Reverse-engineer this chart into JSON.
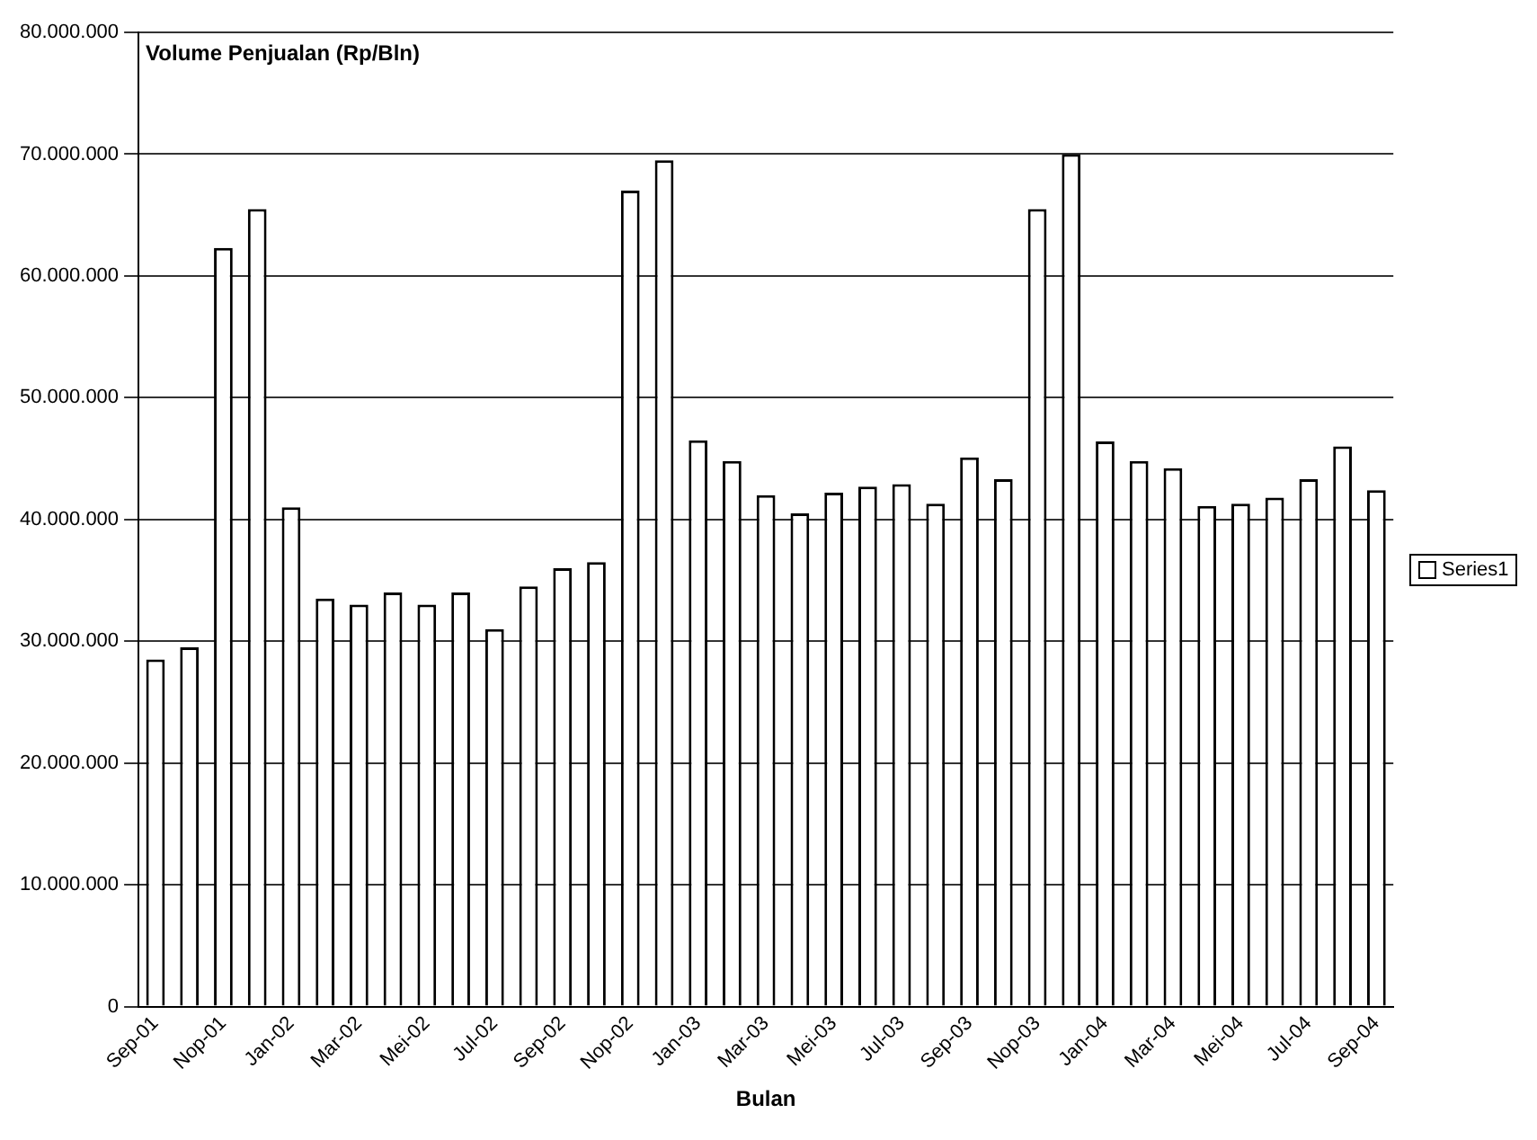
{
  "chart_data": {
    "type": "bar",
    "ylabel": "Volume Penjualan (Rp/Bln)",
    "xlabel": "Bulan",
    "categories": [
      "Sep-01",
      null,
      "Nop-01",
      null,
      "Jan-02",
      null,
      "Mar-02",
      null,
      "Mei-02",
      null,
      "Jul-02",
      null,
      "Sep-02",
      null,
      "Nop-02",
      null,
      "Jan-03",
      null,
      "Mar-03",
      null,
      "Mei-03",
      null,
      "Jul-03",
      null,
      "Sep-03",
      null,
      "Nop-03",
      null,
      "Jan-04",
      null,
      "Mar-04",
      null,
      "Mei-04",
      null,
      "Jul-04",
      null,
      "Sep-04"
    ],
    "series": [
      {
        "name": "Series1",
        "color": "#ffffff",
        "values": [
          28500000,
          29500000,
          62300000,
          65500000,
          41000000,
          33500000,
          33000000,
          34000000,
          33000000,
          34000000,
          31000000,
          34500000,
          36000000,
          36500000,
          67000000,
          69500000,
          46500000,
          44800000,
          42000000,
          40500000,
          42200000,
          42700000,
          42900000,
          41300000,
          45100000,
          43300000,
          65500000,
          70000000,
          46400000,
          44800000,
          44200000,
          41100000,
          41300000,
          41800000,
          43300000,
          46000000,
          42400000
        ]
      }
    ],
    "ylim": [
      0,
      80000000
    ],
    "yticks": [
      {
        "value": 0,
        "label": "0"
      },
      {
        "value": 10000000,
        "label": "10.000.000"
      },
      {
        "value": 20000000,
        "label": "20.000.000"
      },
      {
        "value": 30000000,
        "label": "30.000.000"
      },
      {
        "value": 40000000,
        "label": "40.000.000"
      },
      {
        "value": 50000000,
        "label": "50.000.000"
      },
      {
        "value": 60000000,
        "label": "60.000.000"
      },
      {
        "value": 70000000,
        "label": "70.000.000"
      },
      {
        "value": 80000000,
        "label": "80.000.000"
      }
    ],
    "grid": "y",
    "legend": "right"
  }
}
